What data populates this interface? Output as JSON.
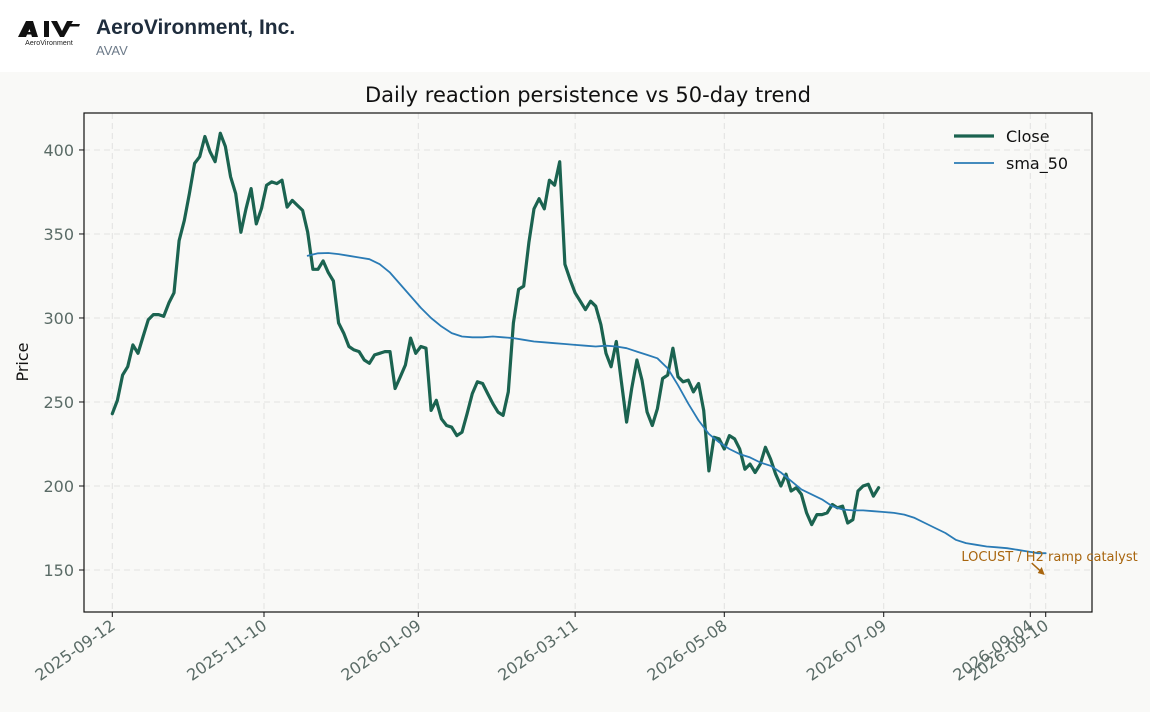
{
  "header": {
    "company_name": "AeroVironment, Inc.",
    "ticker": "AVAV",
    "logo_text": "AeroVironment"
  },
  "colors": {
    "close": "#1b6350",
    "sma": "#2a7bb5",
    "annotation": "#a8650e",
    "grid": "#e2e2e0"
  },
  "chart_data": {
    "type": "line",
    "title": "Daily reaction persistence vs 50-day trend",
    "xlabel": "",
    "ylabel": "Price",
    "x_ticks": [
      "2025-09-12",
      "2025-11-10",
      "2026-01-09",
      "2026-03-11",
      "2026-05-08",
      "2026-07-09",
      "2026-09-04",
      "2026-09-10"
    ],
    "y_ticks": [
      150,
      200,
      250,
      300,
      350,
      400
    ],
    "ylim": [
      125,
      422
    ],
    "xlim": [
      "2025-09-01",
      "2026-09-28"
    ],
    "grid": true,
    "legend_position": "top-right",
    "series": [
      {
        "name": "Close",
        "points": [
          [
            "2025-09-12",
            243
          ],
          [
            "2025-09-14",
            251
          ],
          [
            "2025-09-16",
            266
          ],
          [
            "2025-09-18",
            271
          ],
          [
            "2025-09-20",
            284
          ],
          [
            "2025-09-22",
            279
          ],
          [
            "2025-09-24",
            289
          ],
          [
            "2025-09-26",
            299
          ],
          [
            "2025-09-28",
            302
          ],
          [
            "2025-09-30",
            302
          ],
          [
            "2025-10-02",
            301
          ],
          [
            "2025-10-04",
            309
          ],
          [
            "2025-10-06",
            315
          ],
          [
            "2025-10-08",
            346
          ],
          [
            "2025-10-10",
            358
          ],
          [
            "2025-10-12",
            374
          ],
          [
            "2025-10-14",
            392
          ],
          [
            "2025-10-16",
            396
          ],
          [
            "2025-10-18",
            408
          ],
          [
            "2025-10-20",
            399
          ],
          [
            "2025-10-22",
            393
          ],
          [
            "2025-10-24",
            410
          ],
          [
            "2025-10-26",
            402
          ],
          [
            "2025-10-28",
            384
          ],
          [
            "2025-10-30",
            374
          ],
          [
            "2025-11-01",
            351
          ],
          [
            "2025-11-03",
            365
          ],
          [
            "2025-11-05",
            377
          ],
          [
            "2025-11-07",
            356
          ],
          [
            "2025-11-09",
            365
          ],
          [
            "2025-11-11",
            379
          ],
          [
            "2025-11-13",
            381
          ],
          [
            "2025-11-15",
            380
          ],
          [
            "2025-11-17",
            382
          ],
          [
            "2025-11-19",
            366
          ],
          [
            "2025-11-21",
            370
          ],
          [
            "2025-11-23",
            367
          ],
          [
            "2025-11-25",
            364
          ],
          [
            "2025-11-27",
            351
          ],
          [
            "2025-11-29",
            329
          ],
          [
            "2025-12-01",
            329
          ],
          [
            "2025-12-03",
            334
          ],
          [
            "2025-12-05",
            327
          ],
          [
            "2025-12-07",
            322
          ],
          [
            "2025-12-09",
            297
          ],
          [
            "2025-12-11",
            291
          ],
          [
            "2025-12-13",
            283
          ],
          [
            "2025-12-15",
            281
          ],
          [
            "2025-12-17",
            280
          ],
          [
            "2025-12-19",
            275
          ],
          [
            "2025-12-21",
            273
          ],
          [
            "2025-12-23",
            278
          ],
          [
            "2025-12-25",
            279
          ],
          [
            "2025-12-27",
            280
          ],
          [
            "2025-12-29",
            280
          ],
          [
            "2025-12-31",
            258
          ],
          [
            "2026-01-02",
            265
          ],
          [
            "2026-01-04",
            272
          ],
          [
            "2026-01-06",
            288
          ],
          [
            "2026-01-08",
            279
          ],
          [
            "2026-01-10",
            283
          ],
          [
            "2026-01-12",
            282
          ],
          [
            "2026-01-14",
            245
          ],
          [
            "2026-01-16",
            251
          ],
          [
            "2026-01-18",
            240
          ],
          [
            "2026-01-20",
            236
          ],
          [
            "2026-01-22",
            235
          ],
          [
            "2026-01-24",
            230
          ],
          [
            "2026-01-26",
            232
          ],
          [
            "2026-01-28",
            243
          ],
          [
            "2026-01-30",
            255
          ],
          [
            "2026-02-01",
            262
          ],
          [
            "2026-02-03",
            261
          ],
          [
            "2026-02-05",
            255
          ],
          [
            "2026-02-07",
            249
          ],
          [
            "2026-02-09",
            244
          ],
          [
            "2026-02-11",
            242
          ],
          [
            "2026-02-13",
            256
          ],
          [
            "2026-02-15",
            297
          ],
          [
            "2026-02-17",
            317
          ],
          [
            "2026-02-19",
            319
          ],
          [
            "2026-02-21",
            345
          ],
          [
            "2026-02-23",
            365
          ],
          [
            "2026-02-25",
            371
          ],
          [
            "2026-02-27",
            365
          ],
          [
            "2026-03-01",
            382
          ],
          [
            "2026-03-03",
            379
          ],
          [
            "2026-03-05",
            393
          ],
          [
            "2026-03-07",
            332
          ],
          [
            "2026-03-09",
            323
          ],
          [
            "2026-03-11",
            315
          ],
          [
            "2026-03-13",
            310
          ],
          [
            "2026-03-15",
            305
          ],
          [
            "2026-03-17",
            310
          ],
          [
            "2026-03-19",
            307
          ],
          [
            "2026-03-21",
            296
          ],
          [
            "2026-03-23",
            279
          ],
          [
            "2026-03-25",
            271
          ],
          [
            "2026-03-27",
            286
          ],
          [
            "2026-03-29",
            262
          ],
          [
            "2026-03-31",
            238
          ],
          [
            "2026-04-02",
            258
          ],
          [
            "2026-04-04",
            275
          ],
          [
            "2026-04-06",
            263
          ],
          [
            "2026-04-08",
            244
          ],
          [
            "2026-04-10",
            236
          ],
          [
            "2026-04-12",
            246
          ],
          [
            "2026-04-14",
            264
          ],
          [
            "2026-04-16",
            266
          ],
          [
            "2026-04-18",
            282
          ],
          [
            "2026-04-20",
            265
          ],
          [
            "2026-04-22",
            262
          ],
          [
            "2026-04-24",
            263
          ],
          [
            "2026-04-26",
            256
          ],
          [
            "2026-04-28",
            261
          ],
          [
            "2026-04-30",
            245
          ],
          [
            "2026-05-02",
            209
          ],
          [
            "2026-05-04",
            229
          ],
          [
            "2026-05-06",
            228
          ],
          [
            "2026-05-08",
            222
          ],
          [
            "2026-05-10",
            230
          ],
          [
            "2026-05-12",
            228
          ],
          [
            "2026-05-14",
            222
          ],
          [
            "2026-05-16",
            210
          ],
          [
            "2026-05-18",
            213
          ],
          [
            "2026-05-20",
            208
          ],
          [
            "2026-05-22",
            213
          ],
          [
            "2026-05-24",
            223
          ],
          [
            "2026-05-26",
            216
          ],
          [
            "2026-05-28",
            207
          ],
          [
            "2026-05-30",
            200
          ],
          [
            "2026-06-01",
            207
          ],
          [
            "2026-06-03",
            197
          ],
          [
            "2026-06-05",
            199
          ],
          [
            "2026-06-07",
            195
          ],
          [
            "2026-06-09",
            184
          ],
          [
            "2026-06-11",
            177
          ],
          [
            "2026-06-13",
            183
          ],
          [
            "2026-06-15",
            183
          ],
          [
            "2026-06-17",
            184
          ],
          [
            "2026-06-19",
            189
          ],
          [
            "2026-06-21",
            187
          ],
          [
            "2026-06-23",
            188
          ],
          [
            "2026-06-25",
            178
          ],
          [
            "2026-06-27",
            180
          ],
          [
            "2026-06-29",
            197
          ],
          [
            "2026-07-01",
            200
          ],
          [
            "2026-07-03",
            201
          ],
          [
            "2026-07-05",
            194
          ],
          [
            "2026-07-07",
            199
          ]
        ]
      },
      {
        "name": "sma_50",
        "points": [
          [
            "2025-11-27",
            337
          ],
          [
            "2025-12-01",
            338.5
          ],
          [
            "2025-12-05",
            338.7
          ],
          [
            "2025-12-09",
            338
          ],
          [
            "2025-12-13",
            337
          ],
          [
            "2025-12-17",
            336
          ],
          [
            "2025-12-21",
            335
          ],
          [
            "2025-12-25",
            332
          ],
          [
            "2025-12-29",
            327
          ],
          [
            "2026-01-02",
            320
          ],
          [
            "2026-01-06",
            313
          ],
          [
            "2026-01-10",
            306
          ],
          [
            "2026-01-14",
            300
          ],
          [
            "2026-01-18",
            295
          ],
          [
            "2026-01-22",
            291
          ],
          [
            "2026-01-26",
            289
          ],
          [
            "2026-01-30",
            288.5
          ],
          [
            "2026-02-03",
            288.5
          ],
          [
            "2026-02-07",
            289
          ],
          [
            "2026-02-11",
            288.5
          ],
          [
            "2026-02-15",
            288
          ],
          [
            "2026-02-19",
            287
          ],
          [
            "2026-02-23",
            286
          ],
          [
            "2026-02-27",
            285.5
          ],
          [
            "2026-03-03",
            285
          ],
          [
            "2026-03-07",
            284.5
          ],
          [
            "2026-03-11",
            284
          ],
          [
            "2026-03-15",
            283.5
          ],
          [
            "2026-03-19",
            283
          ],
          [
            "2026-03-23",
            283.5
          ],
          [
            "2026-03-27",
            283
          ],
          [
            "2026-03-31",
            282
          ],
          [
            "2026-04-04",
            280
          ],
          [
            "2026-04-08",
            278
          ],
          [
            "2026-04-12",
            276
          ],
          [
            "2026-04-16",
            270
          ],
          [
            "2026-04-20",
            260
          ],
          [
            "2026-04-24",
            249
          ],
          [
            "2026-04-28",
            239
          ],
          [
            "2026-05-02",
            231
          ],
          [
            "2026-05-06",
            226
          ],
          [
            "2026-05-10",
            222
          ],
          [
            "2026-05-14",
            219
          ],
          [
            "2026-05-18",
            217
          ],
          [
            "2026-05-22",
            214
          ],
          [
            "2026-05-26",
            212
          ],
          [
            "2026-05-30",
            208
          ],
          [
            "2026-06-03",
            203
          ],
          [
            "2026-06-07",
            198
          ],
          [
            "2026-06-11",
            195
          ],
          [
            "2026-06-15",
            192
          ],
          [
            "2026-06-19",
            188
          ],
          [
            "2026-06-23",
            186
          ],
          [
            "2026-06-27",
            185.5
          ],
          [
            "2026-07-01",
            185.5
          ],
          [
            "2026-07-05",
            185
          ],
          [
            "2026-07-09",
            184.5
          ],
          [
            "2026-07-13",
            184
          ],
          [
            "2026-07-17",
            183
          ],
          [
            "2026-07-21",
            181
          ],
          [
            "2026-07-25",
            178
          ],
          [
            "2026-07-29",
            175
          ],
          [
            "2026-08-02",
            172
          ],
          [
            "2026-08-06",
            168
          ],
          [
            "2026-08-10",
            166
          ],
          [
            "2026-08-14",
            165
          ],
          [
            "2026-08-18",
            164
          ],
          [
            "2026-08-22",
            163.5
          ],
          [
            "2026-08-26",
            163
          ],
          [
            "2026-08-30",
            162
          ],
          [
            "2026-09-03",
            161
          ],
          [
            "2026-09-07",
            160
          ],
          [
            "2026-09-10",
            160
          ]
        ]
      }
    ],
    "annotations": [
      {
        "text": "LOCUST / H2 ramp catalyst",
        "date": "2026-09-10",
        "value": 147
      }
    ]
  }
}
